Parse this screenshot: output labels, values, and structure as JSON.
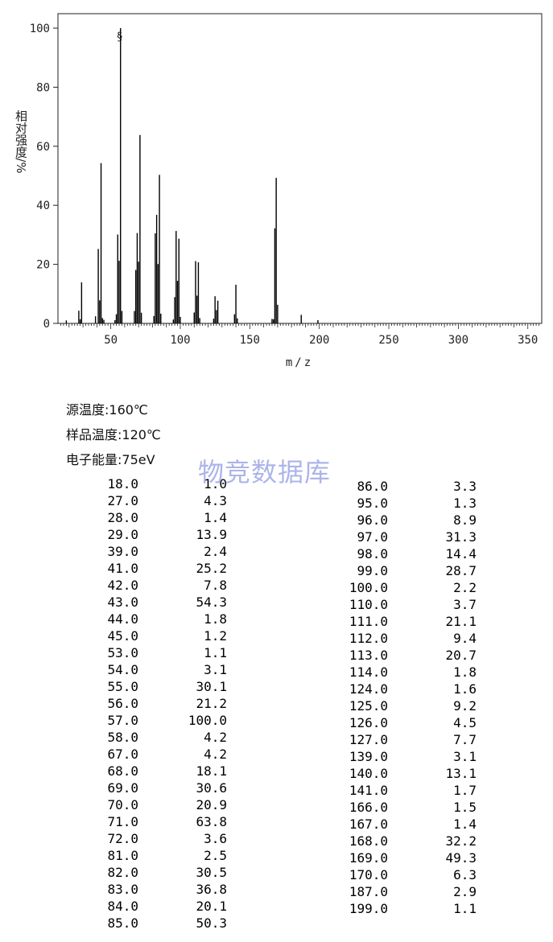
{
  "chart_data": {
    "type": "bar",
    "xlabel": "m/z",
    "ylabel": "相对强度/%",
    "xlim": [
      12,
      360
    ],
    "ylim": [
      0,
      100
    ],
    "x_ticks": [
      50,
      100,
      150,
      200,
      250,
      300,
      350
    ],
    "y_ticks": [
      0,
      20,
      40,
      60,
      80,
      100
    ],
    "base_peak_marker": "§",
    "peaks": [
      {
        "mz": 18.0,
        "abundance": 1.0
      },
      {
        "mz": 27.0,
        "abundance": 4.3
      },
      {
        "mz": 28.0,
        "abundance": 1.4
      },
      {
        "mz": 29.0,
        "abundance": 13.9
      },
      {
        "mz": 39.0,
        "abundance": 2.4
      },
      {
        "mz": 41.0,
        "abundance": 25.2
      },
      {
        "mz": 42.0,
        "abundance": 7.8
      },
      {
        "mz": 43.0,
        "abundance": 54.3
      },
      {
        "mz": 44.0,
        "abundance": 1.8
      },
      {
        "mz": 45.0,
        "abundance": 1.2
      },
      {
        "mz": 53.0,
        "abundance": 1.1
      },
      {
        "mz": 54.0,
        "abundance": 3.1
      },
      {
        "mz": 55.0,
        "abundance": 30.1
      },
      {
        "mz": 56.0,
        "abundance": 21.2
      },
      {
        "mz": 57.0,
        "abundance": 100.0
      },
      {
        "mz": 58.0,
        "abundance": 4.2
      },
      {
        "mz": 67.0,
        "abundance": 4.2
      },
      {
        "mz": 68.0,
        "abundance": 18.1
      },
      {
        "mz": 69.0,
        "abundance": 30.6
      },
      {
        "mz": 70.0,
        "abundance": 20.9
      },
      {
        "mz": 71.0,
        "abundance": 63.8
      },
      {
        "mz": 72.0,
        "abundance": 3.6
      },
      {
        "mz": 81.0,
        "abundance": 2.5
      },
      {
        "mz": 82.0,
        "abundance": 30.5
      },
      {
        "mz": 83.0,
        "abundance": 36.8
      },
      {
        "mz": 84.0,
        "abundance": 20.1
      },
      {
        "mz": 85.0,
        "abundance": 50.3
      },
      {
        "mz": 86.0,
        "abundance": 3.3
      },
      {
        "mz": 95.0,
        "abundance": 1.3
      },
      {
        "mz": 96.0,
        "abundance": 8.9
      },
      {
        "mz": 97.0,
        "abundance": 31.3
      },
      {
        "mz": 98.0,
        "abundance": 14.4
      },
      {
        "mz": 99.0,
        "abundance": 28.7
      },
      {
        "mz": 100.0,
        "abundance": 2.2
      },
      {
        "mz": 110.0,
        "abundance": 3.7
      },
      {
        "mz": 111.0,
        "abundance": 21.1
      },
      {
        "mz": 112.0,
        "abundance": 9.4
      },
      {
        "mz": 113.0,
        "abundance": 20.7
      },
      {
        "mz": 114.0,
        "abundance": 1.8
      },
      {
        "mz": 124.0,
        "abundance": 1.6
      },
      {
        "mz": 125.0,
        "abundance": 9.2
      },
      {
        "mz": 126.0,
        "abundance": 4.5
      },
      {
        "mz": 127.0,
        "abundance": 7.7
      },
      {
        "mz": 139.0,
        "abundance": 3.1
      },
      {
        "mz": 140.0,
        "abundance": 13.1
      },
      {
        "mz": 141.0,
        "abundance": 1.7
      },
      {
        "mz": 166.0,
        "abundance": 1.5
      },
      {
        "mz": 167.0,
        "abundance": 1.4
      },
      {
        "mz": 168.0,
        "abundance": 32.2
      },
      {
        "mz": 169.0,
        "abundance": 49.3
      },
      {
        "mz": 170.0,
        "abundance": 6.3
      },
      {
        "mz": 187.0,
        "abundance": 2.9
      },
      {
        "mz": 199.0,
        "abundance": 1.1
      }
    ]
  },
  "conditions": {
    "source_temp": "源温度:160℃",
    "sample_temp": "样品温度:120℃",
    "electron_energy": "电子能量:75eV"
  },
  "watermark": "物竞数据库",
  "table_left": [
    {
      "mz": "18.0",
      "ab": "1.0"
    },
    {
      "mz": "27.0",
      "ab": "4.3"
    },
    {
      "mz": "28.0",
      "ab": "1.4"
    },
    {
      "mz": "29.0",
      "ab": "13.9"
    },
    {
      "mz": "39.0",
      "ab": "2.4"
    },
    {
      "mz": "41.0",
      "ab": "25.2"
    },
    {
      "mz": "42.0",
      "ab": "7.8"
    },
    {
      "mz": "43.0",
      "ab": "54.3"
    },
    {
      "mz": "44.0",
      "ab": "1.8"
    },
    {
      "mz": "45.0",
      "ab": "1.2"
    },
    {
      "mz": "53.0",
      "ab": "1.1"
    },
    {
      "mz": "54.0",
      "ab": "3.1"
    },
    {
      "mz": "55.0",
      "ab": "30.1"
    },
    {
      "mz": "56.0",
      "ab": "21.2"
    },
    {
      "mz": "57.0",
      "ab": "100.0"
    },
    {
      "mz": "58.0",
      "ab": "4.2"
    },
    {
      "mz": "67.0",
      "ab": "4.2"
    },
    {
      "mz": "68.0",
      "ab": "18.1"
    },
    {
      "mz": "69.0",
      "ab": "30.6"
    },
    {
      "mz": "70.0",
      "ab": "20.9"
    },
    {
      "mz": "71.0",
      "ab": "63.8"
    },
    {
      "mz": "72.0",
      "ab": "3.6"
    },
    {
      "mz": "81.0",
      "ab": "2.5"
    },
    {
      "mz": "82.0",
      "ab": "30.5"
    },
    {
      "mz": "83.0",
      "ab": "36.8"
    },
    {
      "mz": "84.0",
      "ab": "20.1"
    },
    {
      "mz": "85.0",
      "ab": "50.3"
    }
  ],
  "table_right": [
    {
      "mz": "86.0",
      "ab": "3.3"
    },
    {
      "mz": "95.0",
      "ab": "1.3"
    },
    {
      "mz": "96.0",
      "ab": "8.9"
    },
    {
      "mz": "97.0",
      "ab": "31.3"
    },
    {
      "mz": "98.0",
      "ab": "14.4"
    },
    {
      "mz": "99.0",
      "ab": "28.7"
    },
    {
      "mz": "100.0",
      "ab": "2.2"
    },
    {
      "mz": "110.0",
      "ab": "3.7"
    },
    {
      "mz": "111.0",
      "ab": "21.1"
    },
    {
      "mz": "112.0",
      "ab": "9.4"
    },
    {
      "mz": "113.0",
      "ab": "20.7"
    },
    {
      "mz": "114.0",
      "ab": "1.8"
    },
    {
      "mz": "124.0",
      "ab": "1.6"
    },
    {
      "mz": "125.0",
      "ab": "9.2"
    },
    {
      "mz": "126.0",
      "ab": "4.5"
    },
    {
      "mz": "127.0",
      "ab": "7.7"
    },
    {
      "mz": "139.0",
      "ab": "3.1"
    },
    {
      "mz": "140.0",
      "ab": "13.1"
    },
    {
      "mz": "141.0",
      "ab": "1.7"
    },
    {
      "mz": "166.0",
      "ab": "1.5"
    },
    {
      "mz": "167.0",
      "ab": "1.4"
    },
    {
      "mz": "168.0",
      "ab": "32.2"
    },
    {
      "mz": "169.0",
      "ab": "49.3"
    },
    {
      "mz": "170.0",
      "ab": "6.3"
    },
    {
      "mz": "187.0",
      "ab": "2.9"
    },
    {
      "mz": "199.0",
      "ab": "1.1"
    }
  ]
}
